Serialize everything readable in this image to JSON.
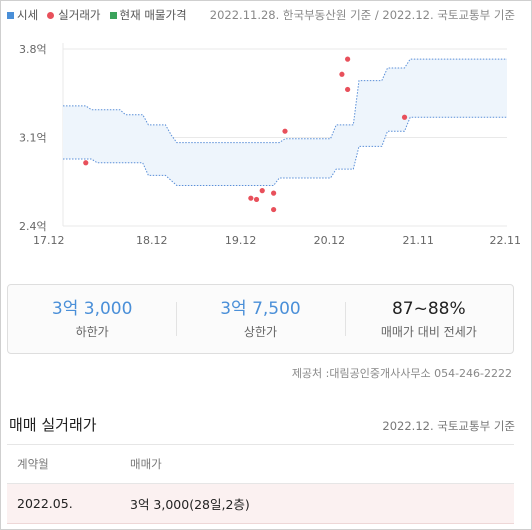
{
  "legend": {
    "items": [
      {
        "label": "시세",
        "color": "#4a8fd8",
        "shape": "square"
      },
      {
        "label": "실거래가",
        "color": "#e8505b",
        "shape": "dot"
      },
      {
        "label": "현재 매물가격",
        "color": "#3aa35b",
        "shape": "square"
      }
    ]
  },
  "source_note": "2022.11.28. 한국부동산원 기준 / 2022.12. 국토교통부 기준",
  "chart_data": {
    "type": "line",
    "x_tick_labels": [
      "17.12",
      "18.12",
      "19.12",
      "20.12",
      "21.11",
      "22.11"
    ],
    "y_tick_labels": [
      "3.8억",
      "3.1억",
      "2.4억"
    ],
    "ylim": [
      2.4,
      3.8
    ],
    "y_unit": "억",
    "grid": true,
    "series": [
      {
        "role": "upper",
        "color": "#5a8fd8",
        "points": [
          [
            0,
            3.35
          ],
          [
            4,
            3.35
          ],
          [
            5,
            3.32
          ],
          [
            10,
            3.32
          ],
          [
            11,
            3.28
          ],
          [
            14,
            3.28
          ],
          [
            15,
            3.2
          ],
          [
            18,
            3.2
          ],
          [
            19,
            3.12
          ],
          [
            20,
            3.06
          ],
          [
            38,
            3.06
          ],
          [
            39,
            3.09
          ],
          [
            47,
            3.09
          ],
          [
            48,
            3.2
          ],
          [
            51,
            3.2
          ],
          [
            52,
            3.55
          ],
          [
            56,
            3.55
          ],
          [
            57,
            3.65
          ],
          [
            60,
            3.65
          ],
          [
            61,
            3.72
          ],
          [
            78,
            3.72
          ]
        ]
      },
      {
        "role": "lower",
        "color": "#5a8fd8",
        "points": [
          [
            0,
            2.93
          ],
          [
            5,
            2.93
          ],
          [
            6,
            2.9
          ],
          [
            14,
            2.9
          ],
          [
            15,
            2.8
          ],
          [
            18,
            2.8
          ],
          [
            19,
            2.76
          ],
          [
            20,
            2.72
          ],
          [
            37,
            2.72
          ],
          [
            38,
            2.78
          ],
          [
            47,
            2.78
          ],
          [
            48,
            2.85
          ],
          [
            51,
            2.85
          ],
          [
            52,
            3.03
          ],
          [
            56,
            3.03
          ],
          [
            57,
            3.15
          ],
          [
            60,
            3.15
          ],
          [
            61,
            3.26
          ],
          [
            78,
            3.26
          ]
        ]
      }
    ],
    "transactions": {
      "name": "실거래가",
      "color": "#e8505b",
      "points": [
        [
          4,
          2.9
        ],
        [
          33,
          2.62
        ],
        [
          34,
          2.61
        ],
        [
          35,
          2.68
        ],
        [
          37,
          2.66
        ],
        [
          37,
          2.53
        ],
        [
          39,
          3.15
        ],
        [
          49,
          3.6
        ],
        [
          50,
          3.72
        ],
        [
          50,
          3.48
        ],
        [
          60,
          3.26
        ]
      ]
    }
  },
  "summary": {
    "low": {
      "value": "3억 3,000",
      "label": "하한가"
    },
    "high": {
      "value": "3억 7,500",
      "label": "상한가"
    },
    "ratio": {
      "value": "87~88%",
      "label": "매매가 대비 전세가"
    }
  },
  "provider": "제공처 :대림공인중개사사무소 054-246-2222",
  "trades": {
    "title": "매매 실거래가",
    "note": "2022.12. 국토교통부 기준",
    "headers": [
      "계약월",
      "매매가"
    ],
    "rows": [
      {
        "month": "2022.05.",
        "price": "3억 3,000(28일,2층)"
      }
    ]
  }
}
